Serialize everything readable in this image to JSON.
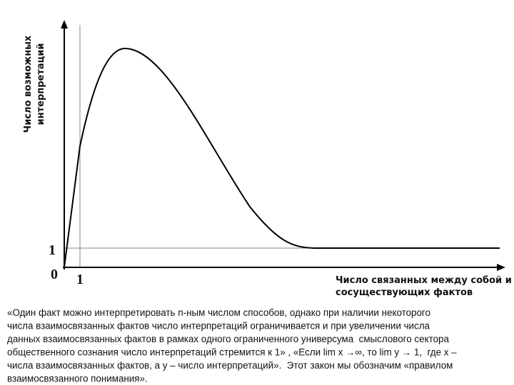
{
  "diagram": {
    "y_axis_label": [
      "Число возможных",
      "интерпретаций"
    ],
    "x_axis_label": [
      "Число связанных между собой и",
      "сосуществующих фактов"
    ],
    "y_tick": "1",
    "origin": "0",
    "x_tick": "1",
    "caption": [
      "«Один факт можно интерпретировать n-ным числом способов, однако при наличии некоторого",
      "числа взаимосвязанных фактов число интерпретаций ограничивается и при увеличении числа",
      "данных взаимосвязанных фактов в рамках одного ограниченного универсума  смыслового сектора",
      "общественного сознания число интерпретаций стремится к 1» , «Если lim x →∞, то lim y → 1,  где x –",
      "числа взаимосвязанных фактов, а y – число интерпретаций».  Этот закон мы обозначим «правилом",
      "взаимосвязанного понимания»."
    ]
  }
}
